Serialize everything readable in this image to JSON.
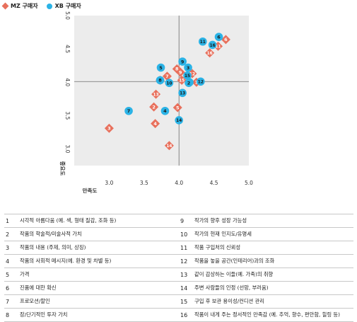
{
  "legend": {
    "mz_label": "MZ 구매자",
    "xb_label": "XB 구매자"
  },
  "colors": {
    "mz": "#e8705c",
    "xb": "#2bb3e6",
    "plot_bg": "#ececec",
    "grid": "#6b6b6b"
  },
  "chart_data": {
    "type": "scatter",
    "xlabel": "만족도",
    "ylabel": "중요도",
    "xlim": [
      2.5,
      5.0
    ],
    "ylim": [
      2.75,
      5.0
    ],
    "x_ticks": [
      "3.0",
      "3.5",
      "4.0",
      "4.5",
      "5.0"
    ],
    "y_ticks": [
      "3.0",
      "3.5",
      "4.0",
      "4.5",
      "5.0"
    ],
    "reference_lines": {
      "x": 4.0,
      "y": 4.01
    },
    "series": [
      {
        "name": "MZ 구매자",
        "marker": "diamond",
        "points": [
          {
            "label": "1",
            "x": 4.25,
            "y": 4.0
          },
          {
            "label": "2",
            "x": 3.64,
            "y": 3.63
          },
          {
            "label": "3",
            "x": 3.0,
            "y": 3.31
          },
          {
            "label": "4",
            "x": 3.66,
            "y": 3.38
          },
          {
            "label": "5",
            "x": 3.98,
            "y": 3.62
          },
          {
            "label": "6",
            "x": 4.67,
            "y": 4.64
          },
          {
            "label": "7",
            "x": 3.83,
            "y": 4.09
          },
          {
            "label": "8",
            "x": 3.97,
            "y": 4.2
          },
          {
            "label": "9",
            "x": 4.02,
            "y": 4.15
          },
          {
            "label": "10",
            "x": 3.73,
            "y": 4.03
          },
          {
            "label": "11",
            "x": 4.56,
            "y": 4.54
          },
          {
            "label": "12",
            "x": 4.19,
            "y": 4.13
          },
          {
            "label": "13",
            "x": 3.67,
            "y": 3.82
          },
          {
            "label": "14",
            "x": 3.86,
            "y": 3.05
          },
          {
            "label": "15",
            "x": 4.04,
            "y": 4.03
          },
          {
            "label": "16",
            "x": 4.44,
            "y": 4.44
          }
        ]
      },
      {
        "name": "XB 구매자",
        "marker": "circle",
        "points": [
          {
            "label": "1",
            "x": 4.15,
            "y": 4.0
          },
          {
            "label": "2",
            "x": 4.14,
            "y": 3.99
          },
          {
            "label": "3",
            "x": 4.13,
            "y": 4.22
          },
          {
            "label": "4",
            "x": 3.8,
            "y": 3.57
          },
          {
            "label": "5",
            "x": 3.74,
            "y": 4.22
          },
          {
            "label": "6",
            "x": 4.57,
            "y": 4.68
          },
          {
            "label": "7",
            "x": 3.28,
            "y": 3.57
          },
          {
            "label": "8",
            "x": 3.73,
            "y": 4.03
          },
          {
            "label": "9",
            "x": 4.05,
            "y": 4.31
          },
          {
            "label": "10",
            "x": 3.86,
            "y": 3.99
          },
          {
            "label": "11",
            "x": 4.34,
            "y": 4.61
          },
          {
            "label": "12",
            "x": 4.31,
            "y": 4.01
          },
          {
            "label": "13",
            "x": 4.05,
            "y": 3.84
          },
          {
            "label": "14",
            "x": 4.0,
            "y": 3.43
          },
          {
            "label": "15",
            "x": 4.12,
            "y": 4.1
          },
          {
            "label": "16",
            "x": 4.48,
            "y": 4.56
          }
        ]
      }
    ]
  },
  "key_rows": [
    {
      "left_num": "1",
      "left_text": "시각적 아름다움 (예. 색, 형태 질감, 조화 등)",
      "right_num": "9",
      "right_text": "작가의 향후 성장 가능성"
    },
    {
      "left_num": "2",
      "left_text": "작품의 학술적/미술사적 가치",
      "right_num": "10",
      "right_text": "작가의 현재 인지도/유명세"
    },
    {
      "left_num": "3",
      "left_text": "작품의 내용 (주제, 의미, 상징)",
      "right_num": "11",
      "right_text": "작품 구입처의 신뢰성"
    },
    {
      "left_num": "4",
      "left_text": "작품의 사회적 메시지(예. 환경 및 차별 등)",
      "right_num": "12",
      "right_text": "작품을 놓을 공간(인테리어)과의 조화"
    },
    {
      "left_num": "5",
      "left_text": "가격",
      "right_num": "13",
      "right_text": "같이 감상하는 이들(예. 가족)의 취향"
    },
    {
      "left_num": "6",
      "left_text": "진품에 대한 확신",
      "right_num": "14",
      "right_text": "주변 사람들의 인정 (선망, 부러움)"
    },
    {
      "left_num": "7",
      "left_text": "프로모션/할인",
      "right_num": "15",
      "right_text": "구입 후 보관 용이성/컨디션 관리"
    },
    {
      "left_num": "8",
      "left_text": "장/단기적인 투자 가치",
      "right_num": "16",
      "right_text": "작품이 내게 주는 정서적인 만족감 (예. 추억, 향수, 편안함, 힐링 등)"
    }
  ]
}
